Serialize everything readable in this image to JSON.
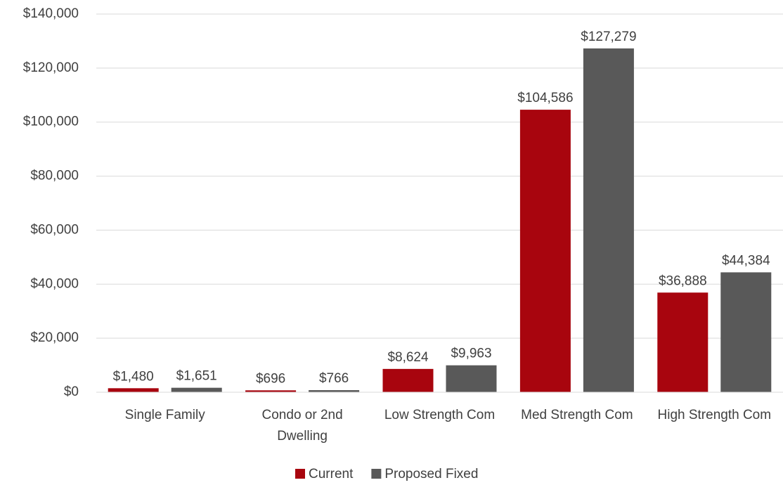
{
  "chart_data": {
    "type": "bar",
    "categories": [
      "Single Family",
      "Condo or 2nd Dwelling",
      "Low Strength Com",
      "Med Strength Com",
      "High Strength Com"
    ],
    "series": [
      {
        "name": "Current",
        "color": "#a8050e",
        "values": [
          1480,
          696,
          8624,
          104586,
          36888
        ],
        "value_labels": [
          "$1,480",
          "$696",
          "$8,624",
          "$104,586",
          "$36,888"
        ]
      },
      {
        "name": "Proposed Fixed",
        "color": "#595959",
        "values": [
          1651,
          766,
          9963,
          127279,
          44384
        ],
        "value_labels": [
          "$1,651",
          "$766",
          "$9,963",
          "$127,279",
          "$44,384"
        ]
      }
    ],
    "ylim": [
      0,
      140000
    ],
    "yticks": [
      {
        "value": 0,
        "label": "$0"
      },
      {
        "value": 20000,
        "label": "$20,000"
      },
      {
        "value": 40000,
        "label": "$40,000"
      },
      {
        "value": 60000,
        "label": "$60,000"
      },
      {
        "value": 80000,
        "label": "$80,000"
      },
      {
        "value": 100000,
        "label": "$100,000"
      },
      {
        "value": 120000,
        "label": "$120,000"
      },
      {
        "value": 140000,
        "label": "$140,000"
      }
    ],
    "grid": true,
    "legend": "bottom"
  }
}
